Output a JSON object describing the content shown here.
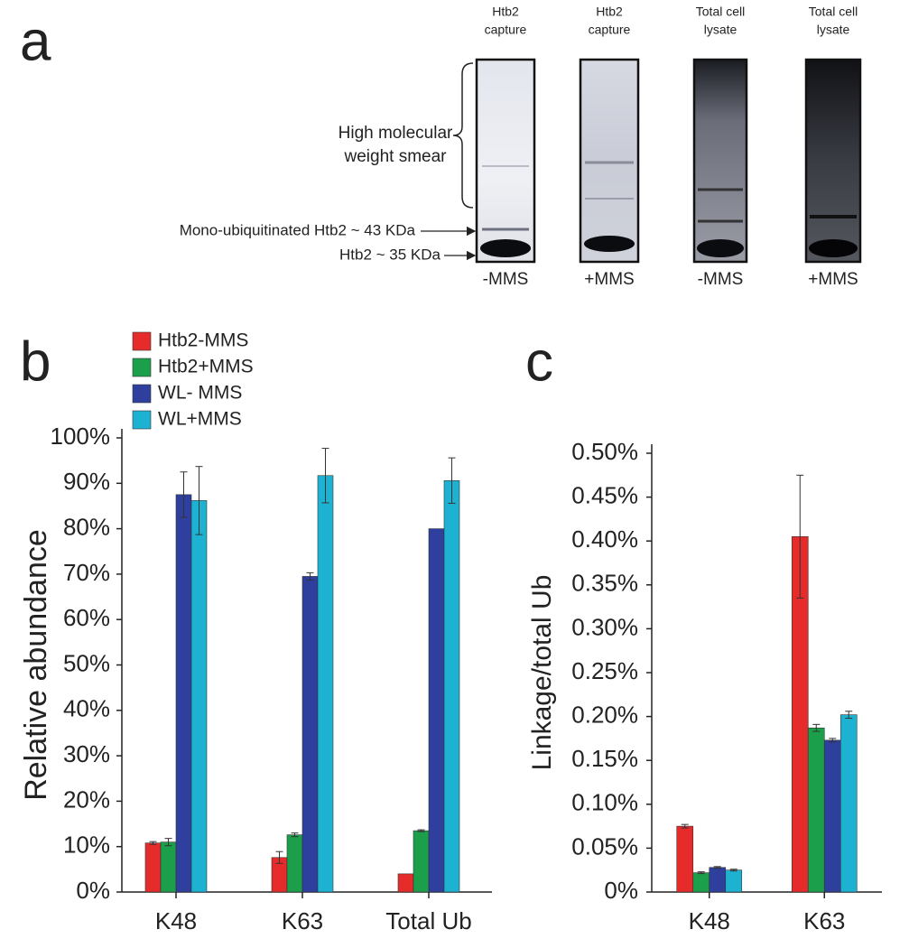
{
  "panel_a": {
    "letter": "a",
    "lanes": [
      {
        "header": [
          "Htb2",
          "capture"
        ],
        "condition": "-MMS"
      },
      {
        "header": [
          "Htb2",
          "capture"
        ],
        "condition": "+MMS"
      },
      {
        "header": [
          "Total cell",
          "lysate"
        ],
        "condition": "-MMS"
      },
      {
        "header": [
          "Total cell",
          "lysate"
        ],
        "condition": "+MMS"
      }
    ],
    "smear_label": [
      "High molecular",
      "weight smear"
    ],
    "mono_label": "Mono-ubiquitinated Htb2 ~ 43 KDa",
    "htb2_label": "Htb2 ~ 35 KDa"
  },
  "chart_data": [
    {
      "type": "bar",
      "letter": "b",
      "y_label": "Relative abundance",
      "categories": [
        "K48",
        "K63",
        "Total Ub"
      ],
      "series": [
        {
          "name": "Htb2-MMS",
          "color": "#e62b2b",
          "values": [
            10.8,
            7.6,
            4
          ],
          "errors": [
            0.3,
            1.3,
            null
          ]
        },
        {
          "name": "Htb2+MMS",
          "color": "#1c9f4a",
          "values": [
            11,
            12.6,
            13.5
          ],
          "errors": [
            0.8,
            0.4,
            0.2
          ]
        },
        {
          "name": "WL- MMS",
          "color": "#2f3f9e",
          "values": [
            87.5,
            69.5,
            80
          ],
          "errors": [
            5,
            0.8,
            null
          ]
        },
        {
          "name": "WL+MMS",
          "color": "#1db2d2",
          "values": [
            86.2,
            91.7,
            90.6
          ],
          "errors": [
            7.5,
            6,
            5
          ]
        }
      ],
      "ylim": [
        0,
        100
      ],
      "yticks": [
        {
          "value": 0,
          "label": "0%"
        },
        {
          "value": 10,
          "label": "10%"
        },
        {
          "value": 20,
          "label": "20%"
        },
        {
          "value": 30,
          "label": "30%"
        },
        {
          "value": 40,
          "label": "40%"
        },
        {
          "value": 50,
          "label": "50%"
        },
        {
          "value": 60,
          "label": "60%"
        },
        {
          "value": 70,
          "label": "70%"
        },
        {
          "value": 80,
          "label": "80%"
        },
        {
          "value": 90,
          "label": "90%"
        },
        {
          "value": 100,
          "label": "100%"
        }
      ],
      "legend": "upper left"
    },
    {
      "type": "bar",
      "letter": "c",
      "y_label": "Linkage/total Ub",
      "categories": [
        "K48",
        "K63"
      ],
      "series": [
        {
          "color": "#e62b2b",
          "values": [
            0.075,
            0.405
          ],
          "errors": [
            0.002,
            0.07
          ]
        },
        {
          "color": "#1c9f4a",
          "values": [
            0.022,
            0.187
          ],
          "errors": [
            0.001,
            0.004
          ]
        },
        {
          "color": "#2f3f9e",
          "values": [
            0.028,
            0.173
          ],
          "errors": [
            0.001,
            0.002
          ]
        },
        {
          "color": "#1db2d2",
          "values": [
            0.025,
            0.202
          ],
          "errors": [
            0.001,
            0.004
          ]
        }
      ],
      "ylim": [
        0,
        0.5
      ],
      "yticks": [
        {
          "value": 0,
          "label": "0%"
        },
        {
          "value": 0.05,
          "label": "0.05%"
        },
        {
          "value": 0.1,
          "label": "0.10%"
        },
        {
          "value": 0.15,
          "label": "0.15%"
        },
        {
          "value": 0.2,
          "label": "0.20%"
        },
        {
          "value": 0.25,
          "label": "0.25%"
        },
        {
          "value": 0.3,
          "label": "0.30%"
        },
        {
          "value": 0.35,
          "label": "0.35%"
        },
        {
          "value": 0.4,
          "label": "0.40%"
        },
        {
          "value": 0.45,
          "label": "0.45%"
        },
        {
          "value": 0.5,
          "label": "0.50%"
        }
      ]
    }
  ]
}
